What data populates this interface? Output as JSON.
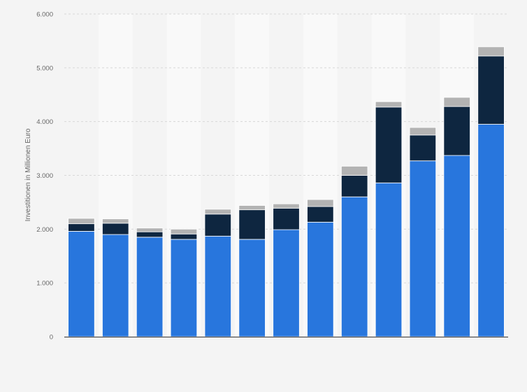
{
  "colors": {
    "background": "#f4f4f4",
    "band": "#f9f9f9",
    "grid": "#d8d8d8",
    "axis": "#333333",
    "text": "#666666"
  },
  "chart_data": {
    "type": "bar",
    "stacked": true,
    "title": "",
    "xlabel": "",
    "ylabel": "Investitionen in Millionen Euro",
    "ylim": [
      0,
      6000
    ],
    "yticks": [
      0,
      1000,
      2000,
      3000,
      4000,
      5000,
      6000
    ],
    "ytick_labels": [
      "0",
      "1.000",
      "2.000",
      "3.000",
      "4.000",
      "5.000",
      "6.000"
    ],
    "grid": true,
    "legend": "none",
    "categories": [
      "",
      "",
      "",
      "",
      "",
      "",
      "",
      "",
      "",
      "",
      "",
      "",
      ""
    ],
    "series": [
      {
        "color": "#2876dd",
        "values": [
          1960,
          1900,
          1850,
          1810,
          1870,
          1810,
          1990,
          2130,
          2600,
          2860,
          3270,
          3370,
          3950
        ]
      },
      {
        "color": "#0e2640",
        "values": [
          140,
          210,
          100,
          100,
          410,
          550,
          400,
          290,
          400,
          1410,
          480,
          910,
          1270
        ]
      },
      {
        "color": "#b3b3b3",
        "values": [
          100,
          80,
          70,
          90,
          90,
          80,
          80,
          130,
          170,
          100,
          140,
          170,
          170
        ]
      }
    ]
  }
}
